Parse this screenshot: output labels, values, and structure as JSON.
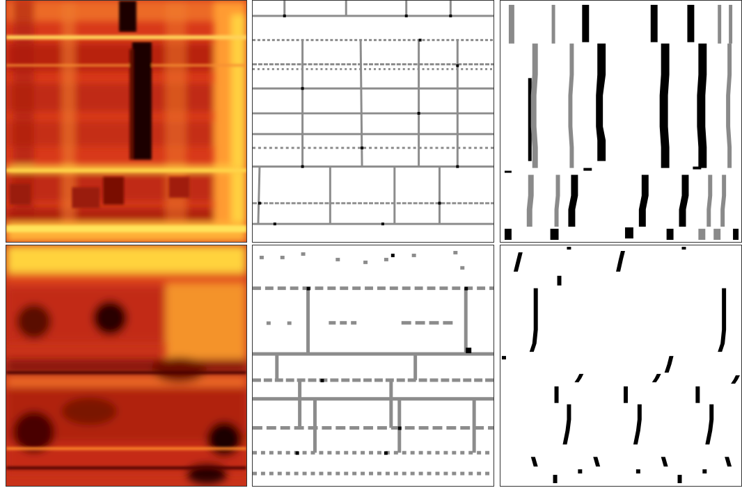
{
  "figure": {
    "panels": [
      {
        "id": "heatmap-top",
        "kind": "heatmap"
      },
      {
        "id": "grid-top",
        "kind": "segmentation-grid"
      },
      {
        "id": "tracks-top",
        "kind": "track-plot"
      },
      {
        "id": "heatmap-bottom",
        "kind": "heatmap"
      },
      {
        "id": "grid-bottom",
        "kind": "segmentation-grid"
      },
      {
        "id": "tracks-bottom",
        "kind": "track-plot"
      }
    ],
    "colors": {
      "heat_dark": "#1a0000",
      "heat_mid": "#d8391a",
      "heat_bright": "#ffe84a",
      "grid_line": "#8c8c8c",
      "grid_node": "#000000",
      "track_black": "#000000",
      "track_gray": "#8a8a8a"
    }
  }
}
